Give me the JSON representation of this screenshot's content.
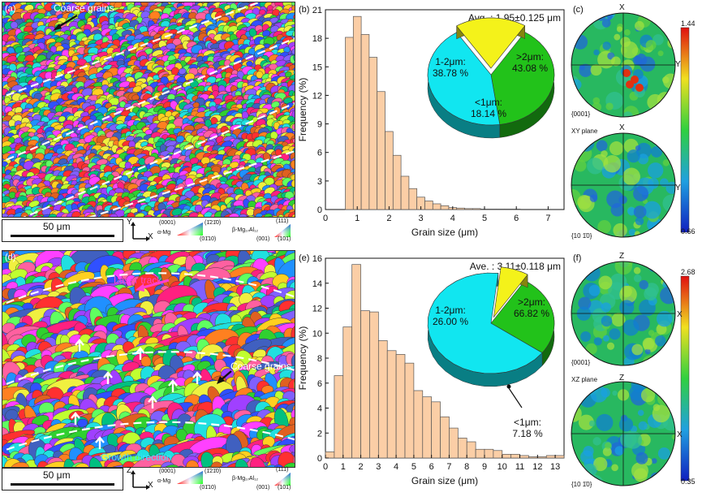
{
  "panels": {
    "a": {
      "label": "(a)",
      "annotation": "Coarse grains",
      "scale": "50 μm",
      "axis_v": "Y",
      "axis_h": "X"
    },
    "b": {
      "label": "(b)"
    },
    "c": {
      "label": "(c)",
      "pf1_top": "X",
      "pf1_right": "Y",
      "pf1_name": "{0001}",
      "plane": "XY plane",
      "pf2_top": "X",
      "pf2_right": "Y",
      "pf2_name": "{10 1̄0}",
      "cbar_max": "1.44",
      "cbar_min": "0.66"
    },
    "d": {
      "label": "(d)",
      "annotation_track": "Laser track",
      "annotation_coarse": "Coarse grains",
      "annotation_growth": "Growth direction",
      "scale": "50 μm",
      "axis_v": "Z",
      "axis_h": "X"
    },
    "e": {
      "label": "(e)"
    },
    "f": {
      "label": "(f)",
      "pf1_top": "Z",
      "pf1_right": "X",
      "pf1_name": "{0001}",
      "plane": "XZ plane",
      "pf2_top": "Z",
      "pf2_right": "X",
      "pf2_name": "{10 1̄0}",
      "cbar_max": "2.68",
      "cbar_min": "0.35"
    }
  },
  "ipf_legend": {
    "a_mg": "α-Mg",
    "b_mg": "β-Mg₁₇Al₁₂",
    "a_0001": "(0001)",
    "a_1210": "(1̄21̄0)",
    "a_0110": "(01̄10)",
    "b_111": "(111)",
    "b_001": "(001)",
    "b_101": "(101)"
  },
  "chart_data": [
    {
      "type": "bar",
      "panel": "b",
      "title": "",
      "summary": "Avg. : 1.95±0.125 μm",
      "xlabel": "Grain size (μm)",
      "ylabel": "Frequency (%)",
      "xlim": [
        0,
        7.5
      ],
      "ylim": [
        0,
        21
      ],
      "xticks": [
        "0",
        "1",
        "2",
        "3",
        "4",
        "5",
        "6",
        "7"
      ],
      "yticks": [
        "0",
        "3",
        "6",
        "9",
        "12",
        "15",
        "18",
        "21"
      ],
      "bin_width": 0.25,
      "bins": [
        0.75,
        1.0,
        1.25,
        1.5,
        1.75,
        2.0,
        2.25,
        2.5,
        2.75,
        3.0,
        3.25,
        3.5,
        3.75,
        4.0,
        4.25,
        4.5,
        4.75,
        5.0,
        5.25,
        5.5,
        5.75,
        6.0
      ],
      "values": [
        18.1,
        20.3,
        18.4,
        16.0,
        12.4,
        8.2,
        5.7,
        3.5,
        2.2,
        1.3,
        0.9,
        0.6,
        0.4,
        0.2,
        0.15,
        0.1,
        0.1,
        0.05,
        0.05,
        0.05,
        0.05,
        0.05
      ],
      "pie": [
        {
          "label": "1-2μm:",
          "value": "38.78 %",
          "percent": 38.78,
          "color": "#22c21a"
        },
        {
          "label": ">2μm:",
          "value": "43.08 %",
          "percent": 43.08,
          "color": "#11e6f0"
        },
        {
          "label": "<1μm:",
          "value": "18.14 %",
          "percent": 18.14,
          "color": "#f4f21a"
        }
      ]
    },
    {
      "type": "bar",
      "panel": "e",
      "title": "",
      "summary": "Ave. : 3.11±0.118 μm",
      "xlabel": "Grain size (μm)",
      "ylabel": "Frequency (%)",
      "xlim": [
        0,
        13.5
      ],
      "ylim": [
        0,
        16
      ],
      "xticks": [
        "0",
        "1",
        "2",
        "3",
        "4",
        "5",
        "6",
        "7",
        "8",
        "9",
        "10",
        "11",
        "12",
        "13"
      ],
      "yticks": [
        "0",
        "2",
        "4",
        "6",
        "8",
        "10",
        "12",
        "14",
        "16"
      ],
      "bin_width": 0.5,
      "bins": [
        0.25,
        0.75,
        1.25,
        1.75,
        2.25,
        2.75,
        3.25,
        3.75,
        4.25,
        4.75,
        5.25,
        5.75,
        6.25,
        6.75,
        7.25,
        7.75,
        8.25,
        8.75,
        9.25,
        9.75,
        10.25,
        10.75,
        11.25,
        11.75,
        12.25,
        12.75,
        13.25
      ],
      "values": [
        0.5,
        6.6,
        10.5,
        15.5,
        11.8,
        11.7,
        9.4,
        8.6,
        8.3,
        7.6,
        5.4,
        4.9,
        4.5,
        3.3,
        2.4,
        1.6,
        1.3,
        0.7,
        0.7,
        0.6,
        0.3,
        0.3,
        0.2,
        0.1,
        0.1,
        0.2,
        0.2
      ],
      "pie": [
        {
          "label": "1-2μm:",
          "value": "26.00 %",
          "percent": 26.0,
          "color": "#22c21a"
        },
        {
          "label": ">2μm:",
          "value": "66.82 %",
          "percent": 66.82,
          "color": "#11e6f0"
        },
        {
          "label": "<1μm:",
          "value": "7.18 %",
          "percent": 7.18,
          "color": "#f4f21a"
        }
      ]
    }
  ],
  "colors": {
    "bar": "#fbcea6",
    "bar_edge": "#555555",
    "dash": "#ffffff",
    "arrow": "#e040c0"
  }
}
